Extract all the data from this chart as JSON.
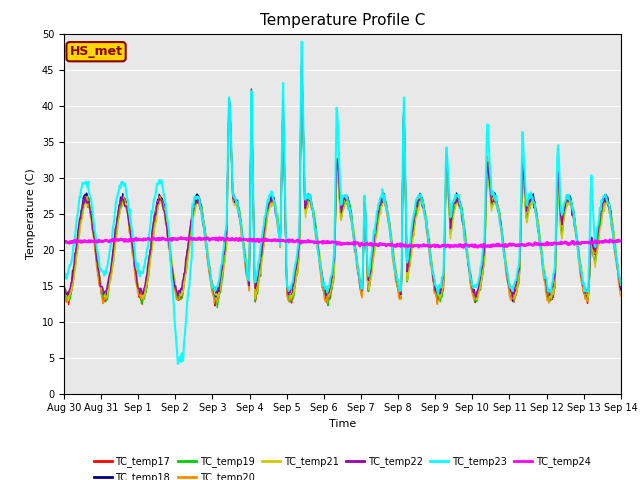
{
  "title": "Temperature Profile C",
  "xlabel": "Time",
  "ylabel": "Temperature (C)",
  "ylim": [
    0,
    50
  ],
  "yticks": [
    0,
    5,
    10,
    15,
    20,
    25,
    30,
    35,
    40,
    45,
    50
  ],
  "annotation_text": "HS_met",
  "annotation_color": "#8B0000",
  "annotation_bg": "#FFD700",
  "bg_color": "#E8E8E8",
  "series_colors": {
    "TC_temp17": "#FF0000",
    "TC_temp18": "#00008B",
    "TC_temp19": "#00CC00",
    "TC_temp20": "#FF8C00",
    "TC_temp21": "#CCCC00",
    "TC_temp22": "#9900AA",
    "TC_temp23": "#00FFFF",
    "TC_temp24": "#FF00FF"
  },
  "x_tick_labels": [
    "Aug 30",
    "Aug 31",
    "Sep 1",
    "Sep 2",
    "Sep 3",
    "Sep 4",
    "Sep 5",
    "Sep 6",
    "Sep 7",
    "Sep 8",
    "Sep 9",
    "Sep 10",
    "Sep 11",
    "Sep 12",
    "Sep 13",
    "Sep 14"
  ]
}
